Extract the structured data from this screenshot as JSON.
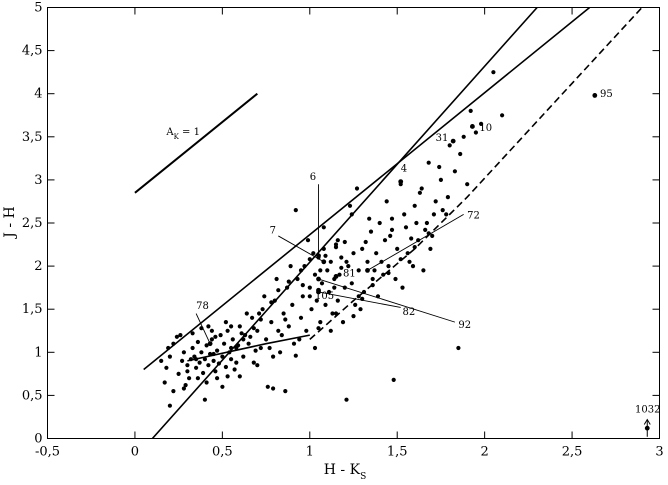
{
  "chart_data": {
    "type": "scatter",
    "xlabel": "H - K",
    "xlabel_sub": "S",
    "ylabel": "J - H",
    "xlim": [
      -0.5,
      3
    ],
    "ylim": [
      0,
      5
    ],
    "x_ticks": [
      -0.5,
      0,
      0.5,
      1,
      1.5,
      2,
      2.5,
      3
    ],
    "x_tick_labels": [
      "-0,5",
      "0",
      "0,5",
      "1",
      "1,5",
      "2",
      "2,5",
      "3"
    ],
    "y_ticks": [
      0,
      0.5,
      1,
      1.5,
      2,
      2.5,
      3,
      3.5,
      4,
      4.5,
      5
    ],
    "y_tick_labels": [
      "0",
      "0,5",
      "1",
      "1,5",
      "2",
      "2,5",
      "3",
      "3,5",
      "4",
      "4,5",
      "5"
    ],
    "reddening_vector": {
      "label": "A",
      "label_sub": "K",
      "label_suffix": " = 1",
      "from": [
        0.0,
        2.85
      ],
      "to": [
        0.7,
        4.0
      ]
    },
    "lines": [
      {
        "style": "solid",
        "points": [
          [
            0.1,
            0.0
          ],
          [
            2.3,
            5.0
          ]
        ]
      },
      {
        "style": "solid",
        "points": [
          [
            0.05,
            0.8
          ],
          [
            2.6,
            5.0
          ]
        ]
      },
      {
        "style": "solid",
        "points": [
          [
            0.3,
            0.9
          ],
          [
            0.75,
            1.1
          ],
          [
            1.0,
            1.2
          ]
        ]
      },
      {
        "style": "dashed",
        "points": [
          [
            1.0,
            1.15
          ],
          [
            1.25,
            1.6
          ],
          [
            1.6,
            2.2
          ],
          [
            1.9,
            2.8
          ],
          [
            2.9,
            5.0
          ]
        ]
      }
    ],
    "labeled_sources": [
      {
        "label": "95",
        "x": 2.63,
        "y": 3.98,
        "tx": 2.66,
        "ty": 3.96,
        "line_to": null
      },
      {
        "label": "10",
        "x": 1.93,
        "y": 3.62,
        "tx": 1.97,
        "ty": 3.57,
        "line_to": null
      },
      {
        "label": "31",
        "x": 1.82,
        "y": 3.45,
        "tx": 1.72,
        "ty": 3.45,
        "line_to": null
      },
      {
        "label": "4",
        "x": 1.52,
        "y": 2.98,
        "tx": 1.52,
        "ty": 3.1,
        "line_to": null
      },
      {
        "label": "6",
        "x": 1.05,
        "y": 2.12,
        "tx": 1.0,
        "ty": 3.0,
        "line_to": [
          1.05,
          2.95
        ]
      },
      {
        "label": "72",
        "x": 1.33,
        "y": 1.95,
        "tx": 1.9,
        "ty": 2.55,
        "line_to": [
          1.88,
          2.6
        ]
      },
      {
        "label": "7",
        "x": 1.08,
        "y": 2.05,
        "tx": 0.77,
        "ty": 2.38,
        "line_to": [
          0.82,
          2.35
        ]
      },
      {
        "label": "81",
        "x": 1.15,
        "y": 1.88,
        "tx": 1.19,
        "ty": 1.88,
        "line_to": null
      },
      {
        "label": "105",
        "x": 1.05,
        "y": 1.72,
        "tx": 1.03,
        "ty": 1.62,
        "line_to": null
      },
      {
        "label": "82",
        "x": 1.05,
        "y": 1.7,
        "tx": 1.53,
        "ty": 1.43,
        "line_to": [
          1.52,
          1.52
        ]
      },
      {
        "label": "92",
        "x": 1.05,
        "y": 1.85,
        "tx": 1.85,
        "ty": 1.28,
        "line_to": [
          1.83,
          1.35
        ]
      },
      {
        "label": "78",
        "x": 0.43,
        "y": 1.1,
        "tx": 0.35,
        "ty": 1.5,
        "line_to": [
          0.35,
          1.45
        ]
      },
      {
        "label": "1032",
        "x": 2.93,
        "y": 0.12,
        "tx": 2.86,
        "ty": 0.3,
        "line_to": null,
        "arrow": true
      }
    ],
    "points": [
      [
        0.2,
        0.38
      ],
      [
        0.17,
        0.65
      ],
      [
        0.18,
        0.82
      ],
      [
        0.2,
        0.95
      ],
      [
        0.22,
        1.1
      ],
      [
        0.24,
        1.18
      ],
      [
        0.25,
        0.75
      ],
      [
        0.27,
        0.9
      ],
      [
        0.28,
        1.0
      ],
      [
        0.3,
        0.85
      ],
      [
        0.31,
        0.7
      ],
      [
        0.32,
        0.92
      ],
      [
        0.33,
        1.05
      ],
      [
        0.34,
        0.95
      ],
      [
        0.35,
        0.82
      ],
      [
        0.36,
        1.12
      ],
      [
        0.37,
        0.88
      ],
      [
        0.38,
        1.0
      ],
      [
        0.39,
        0.76
      ],
      [
        0.4,
        0.92
      ],
      [
        0.41,
        1.08
      ],
      [
        0.42,
        0.85
      ],
      [
        0.43,
        0.98
      ],
      [
        0.44,
        1.15
      ],
      [
        0.45,
        0.9
      ],
      [
        0.46,
        0.78
      ],
      [
        0.47,
        1.02
      ],
      [
        0.48,
        0.87
      ],
      [
        0.49,
        1.2
      ],
      [
        0.5,
        0.95
      ],
      [
        0.51,
        1.1
      ],
      [
        0.52,
        0.83
      ],
      [
        0.53,
        1.25
      ],
      [
        0.54,
        1.0
      ],
      [
        0.55,
        0.92
      ],
      [
        0.56,
        1.15
      ],
      [
        0.57,
        0.8
      ],
      [
        0.58,
        1.05
      ],
      [
        0.6,
        1.3
      ],
      [
        0.62,
        0.95
      ],
      [
        0.63,
        1.2
      ],
      [
        0.65,
        1.1
      ],
      [
        0.67,
        1.4
      ],
      [
        0.68,
        0.88
      ],
      [
        0.7,
        1.25
      ],
      [
        0.72,
        1.05
      ],
      [
        0.73,
        1.5
      ],
      [
        0.75,
        1.15
      ],
      [
        0.76,
        0.6
      ],
      [
        0.78,
        1.35
      ],
      [
        0.8,
        1.6
      ],
      [
        0.82,
        1.25
      ],
      [
        0.83,
        1.0
      ],
      [
        0.85,
        1.45
      ],
      [
        0.87,
        1.75
      ],
      [
        0.88,
        1.3
      ],
      [
        0.9,
        1.55
      ],
      [
        0.91,
        1.1
      ],
      [
        0.92,
        2.65
      ],
      [
        0.93,
        1.85
      ],
      [
        0.95,
        1.4
      ],
      [
        0.96,
        1.65
      ],
      [
        0.97,
        2.0
      ],
      [
        0.98,
        1.25
      ],
      [
        1.0,
        1.75
      ],
      [
        1.01,
        1.5
      ],
      [
        1.02,
        2.15
      ],
      [
        1.03,
        1.9
      ],
      [
        1.04,
        1.6
      ],
      [
        1.05,
        2.1
      ],
      [
        1.06,
        1.35
      ],
      [
        1.07,
        1.8
      ],
      [
        1.08,
        2.2
      ],
      [
        1.09,
        1.55
      ],
      [
        1.1,
        1.95
      ],
      [
        1.11,
        1.7
      ],
      [
        1.12,
        2.05
      ],
      [
        1.13,
        1.45
      ],
      [
        1.14,
        1.85
      ],
      [
        1.15,
        2.25
      ],
      [
        1.16,
        1.6
      ],
      [
        1.17,
        1.9
      ],
      [
        1.18,
        2.1
      ],
      [
        1.2,
        1.75
      ],
      [
        1.21,
        0.45
      ],
      [
        1.22,
        2.0
      ],
      [
        1.23,
        2.7
      ],
      [
        1.24,
        1.8
      ],
      [
        1.25,
        2.15
      ],
      [
        1.26,
        1.55
      ],
      [
        1.27,
        2.9
      ],
      [
        1.28,
        1.95
      ],
      [
        1.3,
        2.2
      ],
      [
        1.31,
        1.7
      ],
      [
        1.33,
        2.05
      ],
      [
        1.35,
        2.4
      ],
      [
        1.36,
        1.85
      ],
      [
        1.38,
        2.15
      ],
      [
        1.4,
        2.5
      ],
      [
        1.42,
        1.9
      ],
      [
        1.43,
        2.3
      ],
      [
        1.45,
        2.0
      ],
      [
        1.47,
        2.55
      ],
      [
        1.48,
        0.68
      ],
      [
        1.5,
        2.2
      ],
      [
        1.52,
        2.95
      ],
      [
        1.53,
        1.75
      ],
      [
        1.55,
        2.45
      ],
      [
        1.57,
        2.05
      ],
      [
        1.6,
        2.7
      ],
      [
        1.62,
        2.3
      ],
      [
        1.64,
        2.9
      ],
      [
        1.65,
        1.95
      ],
      [
        1.67,
        2.5
      ],
      [
        1.68,
        3.2
      ],
      [
        1.7,
        2.35
      ],
      [
        1.72,
        2.75
      ],
      [
        1.75,
        3.0
      ],
      [
        1.78,
        2.6
      ],
      [
        1.8,
        3.4
      ],
      [
        1.83,
        3.1
      ],
      [
        1.85,
        1.05
      ],
      [
        1.88,
        3.5
      ],
      [
        1.92,
        3.8
      ],
      [
        1.95,
        3.55
      ],
      [
        2.05,
        4.25
      ],
      [
        2.1,
        3.75
      ],
      [
        0.22,
        0.55
      ],
      [
        0.26,
        1.2
      ],
      [
        0.29,
        0.62
      ],
      [
        0.33,
        1.22
      ],
      [
        0.36,
        0.7
      ],
      [
        0.4,
        0.45
      ],
      [
        0.44,
        1.25
      ],
      [
        0.5,
        0.6
      ],
      [
        0.55,
        1.3
      ],
      [
        0.6,
        0.72
      ],
      [
        0.64,
        1.45
      ],
      [
        0.7,
        0.85
      ],
      [
        0.74,
        1.65
      ],
      [
        0.77,
        1.05
      ],
      [
        0.81,
        1.85
      ],
      [
        0.86,
        0.55
      ],
      [
        0.89,
        2.0
      ],
      [
        0.94,
        1.15
      ],
      [
        0.99,
        2.3
      ],
      [
        1.03,
        1.05
      ],
      [
        1.08,
        2.45
      ],
      [
        1.12,
        1.25
      ],
      [
        1.16,
        2.3
      ],
      [
        1.19,
        1.35
      ],
      [
        1.24,
        2.6
      ],
      [
        1.29,
        1.5
      ],
      [
        1.34,
        2.55
      ],
      [
        1.39,
        1.65
      ],
      [
        1.44,
        2.75
      ],
      [
        1.49,
        1.85
      ],
      [
        1.54,
        2.6
      ],
      [
        1.59,
        2.0
      ],
      [
        1.63,
        2.85
      ],
      [
        1.69,
        2.2
      ],
      [
        1.74,
        3.15
      ],
      [
        1.79,
        2.8
      ],
      [
        1.86,
        3.3
      ],
      [
        1.9,
        2.95
      ],
      [
        1.98,
        3.65
      ],
      [
        0.42,
        1.3
      ],
      [
        0.47,
        0.7
      ],
      [
        0.52,
        1.35
      ],
      [
        0.58,
        0.88
      ],
      [
        0.66,
        1.18
      ],
      [
        0.71,
        1.45
      ],
      [
        0.79,
        0.95
      ],
      [
        0.84,
        1.2
      ],
      [
        1.0,
        1.65
      ],
      [
        1.06,
        1.95
      ],
      [
        1.14,
        1.75
      ],
      [
        1.21,
        2.05
      ],
      [
        1.28,
        1.65
      ],
      [
        1.37,
        1.95
      ],
      [
        1.41,
        2.05
      ],
      [
        1.46,
        2.35
      ],
      [
        1.56,
        2.15
      ],
      [
        1.61,
        2.5
      ],
      [
        1.71,
        2.6
      ],
      [
        0.15,
        0.9
      ],
      [
        0.19,
        1.05
      ],
      [
        0.38,
        1.28
      ],
      [
        0.41,
        0.65
      ],
      [
        0.46,
        1.18
      ],
      [
        0.53,
        0.72
      ],
      [
        0.59,
        1.08
      ],
      [
        0.61,
        1.22
      ],
      [
        0.69,
        1.02
      ],
      [
        0.86,
        1.38
      ],
      [
        0.96,
        1.78
      ],
      [
        1.09,
        2.12
      ],
      [
        1.18,
        1.98
      ],
      [
        1.32,
        2.28
      ],
      [
        1.47,
        2.42
      ],
      [
        1.58,
        2.32
      ],
      [
        1.66,
        2.42
      ],
      [
        1.76,
        2.65
      ],
      [
        0.79,
        0.58
      ],
      [
        0.92,
        0.96
      ],
      [
        1.05,
        1.28
      ],
      [
        1.15,
        1.45
      ],
      [
        1.3,
        1.62
      ],
      [
        1.36,
        1.78
      ],
      [
        1.45,
        1.92
      ],
      [
        1.52,
        2.08
      ],
      [
        1.6,
        2.22
      ],
      [
        1.68,
        2.38
      ],
      [
        1.15,
        2.22
      ],
      [
        1.2,
        2.28
      ],
      [
        1.25,
        1.42
      ],
      [
        1.0,
        2.08
      ],
      [
        0.95,
        1.95
      ],
      [
        0.88,
        1.82
      ],
      [
        0.82,
        1.72
      ],
      [
        0.78,
        1.58
      ],
      [
        0.72,
        1.38
      ],
      [
        0.68,
        1.28
      ],
      [
        0.62,
        1.15
      ],
      [
        0.55,
        1.05
      ],
      [
        0.45,
        0.98
      ],
      [
        0.35,
        0.92
      ],
      [
        0.3,
        0.78
      ],
      [
        0.28,
        0.58
      ]
    ]
  }
}
